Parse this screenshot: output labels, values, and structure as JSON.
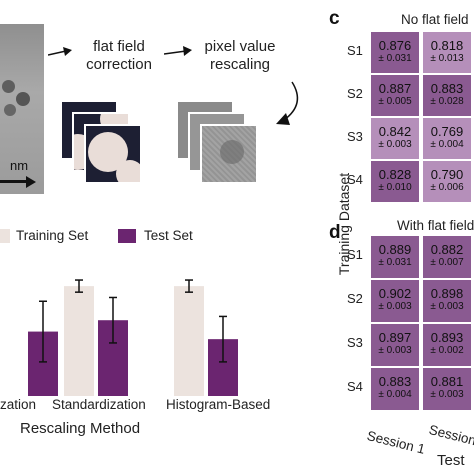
{
  "panel_labels": {
    "c": "c",
    "d": "d"
  },
  "pipeline": {
    "scale_fragment": "nm",
    "step1": [
      "flat field",
      "correction"
    ],
    "step2": [
      "pixel value",
      "rescaling"
    ]
  },
  "legend": {
    "training": "Training Set",
    "test": "Test Set"
  },
  "colors": {
    "training": "#ece3de",
    "test": "#6b2570",
    "heat_dark": "#8a5a91",
    "heat_light": "#b58fba"
  },
  "heatmaps": {
    "c": {
      "title": "No flat field",
      "rows": [
        {
          "label": "S1",
          "cells": [
            {
              "v": "0.876",
              "e": "± 0.031"
            },
            {
              "v": "0.818",
              "e": "± 0.013"
            }
          ]
        },
        {
          "label": "S2",
          "cells": [
            {
              "v": "0.887",
              "e": "± 0.005"
            },
            {
              "v": "0.883",
              "e": "± 0.028"
            }
          ]
        },
        {
          "label": "S3",
          "cells": [
            {
              "v": "0.842",
              "e": "± 0.003"
            },
            {
              "v": "0.769",
              "e": "± 0.004"
            }
          ]
        },
        {
          "label": "S4",
          "cells": [
            {
              "v": "0.828",
              "e": "± 0.010"
            },
            {
              "v": "0.790",
              "e": "± 0.006"
            }
          ]
        }
      ]
    },
    "d": {
      "title": "With flat field",
      "rows": [
        {
          "label": "S1",
          "cells": [
            {
              "v": "0.889",
              "e": "± 0.031"
            },
            {
              "v": "0.882",
              "e": "± 0.007"
            }
          ]
        },
        {
          "label": "S2",
          "cells": [
            {
              "v": "0.902",
              "e": "± 0.003"
            },
            {
              "v": "0.898",
              "e": "± 0.003"
            }
          ]
        },
        {
          "label": "S3",
          "cells": [
            {
              "v": "0.897",
              "e": "± 0.003"
            },
            {
              "v": "0.893",
              "e": "± 0.002"
            }
          ]
        },
        {
          "label": "S4",
          "cells": [
            {
              "v": "0.883",
              "e": "± 0.004"
            },
            {
              "v": "0.881",
              "e": "± 0.003"
            }
          ]
        }
      ]
    },
    "ylabel": "Training Dataset",
    "xlabel": "Test",
    "col_labels": [
      "Session 1",
      "Session"
    ]
  },
  "chart_data": {
    "type": "bar",
    "categories": [
      "zation",
      "Standardization",
      "Histogram-Based"
    ],
    "xlabel": "Rescaling Method",
    "series": [
      {
        "name": "Training Set",
        "values": [
          null,
          0.985,
          0.985
        ],
        "errors": [
          null,
          0.008,
          0.008
        ]
      },
      {
        "name": "Test Set",
        "values": [
          0.925,
          0.94,
          0.915
        ],
        "errors": [
          0.04,
          0.03,
          0.03
        ]
      }
    ],
    "ylim": [
      0.84,
      1.03
    ]
  }
}
